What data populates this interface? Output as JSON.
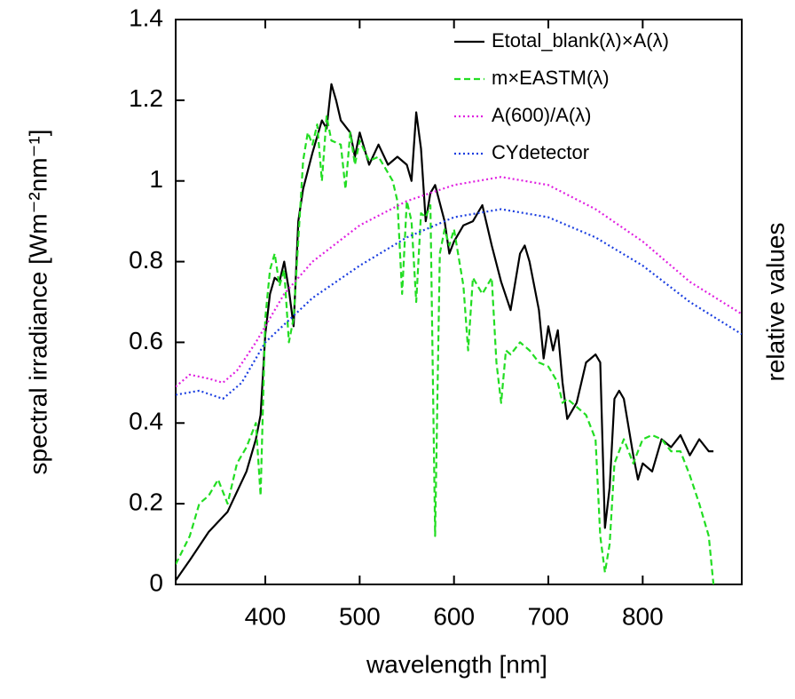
{
  "chart_data": {
    "type": "line",
    "xlabel": "wavelength [nm]",
    "ylabel": "spectral irradiance  [Wm⁻²nm⁻¹]",
    "y2label": "relative values",
    "xlim": [
      305,
      905
    ],
    "ylim": [
      0,
      1.4
    ],
    "xticks": [
      400,
      500,
      600,
      700,
      800
    ],
    "yticks": [
      0,
      0.2,
      0.4,
      0.6,
      0.8,
      1,
      1.2,
      1.4
    ],
    "legend": "upper right",
    "series": [
      {
        "name": "Etotal_blank(λ)×A(λ)",
        "color": "#000000",
        "linestyle": "solid",
        "x": [
          305,
          320,
          340,
          360,
          380,
          390,
          395,
          400,
          405,
          410,
          415,
          420,
          425,
          430,
          435,
          440,
          450,
          460,
          465,
          470,
          475,
          480,
          490,
          495,
          500,
          510,
          520,
          530,
          540,
          550,
          555,
          560,
          565,
          570,
          575,
          580,
          590,
          595,
          600,
          610,
          620,
          630,
          640,
          650,
          660,
          670,
          675,
          680,
          690,
          695,
          700,
          705,
          710,
          715,
          720,
          730,
          740,
          750,
          755,
          760,
          765,
          770,
          775,
          780,
          790,
          795,
          800,
          810,
          820,
          830,
          840,
          850,
          860,
          870,
          875
        ],
        "values": [
          0.01,
          0.06,
          0.13,
          0.18,
          0.28,
          0.36,
          0.42,
          0.62,
          0.72,
          0.76,
          0.75,
          0.8,
          0.73,
          0.64,
          0.9,
          0.98,
          1.07,
          1.15,
          1.13,
          1.24,
          1.2,
          1.15,
          1.12,
          1.06,
          1.12,
          1.04,
          1.09,
          1.04,
          1.06,
          1.04,
          1.0,
          1.17,
          1.08,
          0.9,
          0.97,
          0.99,
          0.9,
          0.82,
          0.85,
          0.89,
          0.9,
          0.94,
          0.84,
          0.75,
          0.68,
          0.82,
          0.84,
          0.8,
          0.68,
          0.56,
          0.64,
          0.58,
          0.63,
          0.5,
          0.41,
          0.45,
          0.55,
          0.57,
          0.55,
          0.14,
          0.24,
          0.46,
          0.48,
          0.46,
          0.32,
          0.26,
          0.3,
          0.28,
          0.36,
          0.34,
          0.37,
          0.32,
          0.36,
          0.33,
          0.33
        ]
      },
      {
        "name": "m×EASTM(λ)",
        "color": "#22dd22",
        "linestyle": "dashed",
        "x": [
          305,
          320,
          330,
          340,
          350,
          360,
          370,
          380,
          390,
          395,
          400,
          405,
          410,
          415,
          420,
          425,
          430,
          440,
          445,
          450,
          455,
          460,
          465,
          470,
          480,
          485,
          490,
          495,
          500,
          510,
          520,
          530,
          535,
          540,
          545,
          550,
          555,
          560,
          565,
          570,
          575,
          580,
          585,
          590,
          595,
          600,
          610,
          615,
          620,
          630,
          640,
          645,
          650,
          655,
          660,
          670,
          680,
          690,
          700,
          710,
          715,
          720,
          730,
          740,
          750,
          755,
          760,
          765,
          770,
          780,
          790,
          800,
          810,
          820,
          830,
          840,
          850,
          860,
          870,
          875
        ],
        "values": [
          0.05,
          0.12,
          0.2,
          0.22,
          0.26,
          0.2,
          0.3,
          0.34,
          0.4,
          0.22,
          0.66,
          0.78,
          0.82,
          0.74,
          0.78,
          0.6,
          0.66,
          1.05,
          1.12,
          1.09,
          1.14,
          1.0,
          1.16,
          1.1,
          1.09,
          0.98,
          1.12,
          1.04,
          1.1,
          1.05,
          1.06,
          1.02,
          1.0,
          0.95,
          0.72,
          0.95,
          0.9,
          0.7,
          0.92,
          0.91,
          0.94,
          0.12,
          0.82,
          0.88,
          0.84,
          0.88,
          0.74,
          0.58,
          0.76,
          0.72,
          0.76,
          0.55,
          0.45,
          0.58,
          0.57,
          0.6,
          0.58,
          0.55,
          0.54,
          0.5,
          0.45,
          0.46,
          0.44,
          0.42,
          0.36,
          0.12,
          0.03,
          0.1,
          0.3,
          0.36,
          0.3,
          0.36,
          0.37,
          0.36,
          0.33,
          0.33,
          0.27,
          0.2,
          0.12,
          0.0
        ]
      },
      {
        "name": "A(600)/A(λ)",
        "color": "#e020e0",
        "linestyle": "dotted",
        "x": [
          305,
          320,
          340,
          355,
          370,
          390,
          420,
          450,
          500,
          550,
          600,
          650,
          700,
          750,
          800,
          850,
          905
        ],
        "values": [
          0.49,
          0.52,
          0.51,
          0.5,
          0.53,
          0.6,
          0.72,
          0.8,
          0.89,
          0.95,
          0.99,
          1.01,
          0.99,
          0.93,
          0.85,
          0.75,
          0.67
        ]
      },
      {
        "name": "CYdetector",
        "color": "#1a3ee0",
        "linestyle": "dotted",
        "x": [
          305,
          330,
          355,
          375,
          400,
          450,
          500,
          550,
          600,
          650,
          700,
          750,
          800,
          850,
          905
        ],
        "values": [
          0.47,
          0.48,
          0.46,
          0.5,
          0.6,
          0.71,
          0.79,
          0.86,
          0.91,
          0.93,
          0.91,
          0.86,
          0.79,
          0.7,
          0.62
        ]
      }
    ]
  }
}
